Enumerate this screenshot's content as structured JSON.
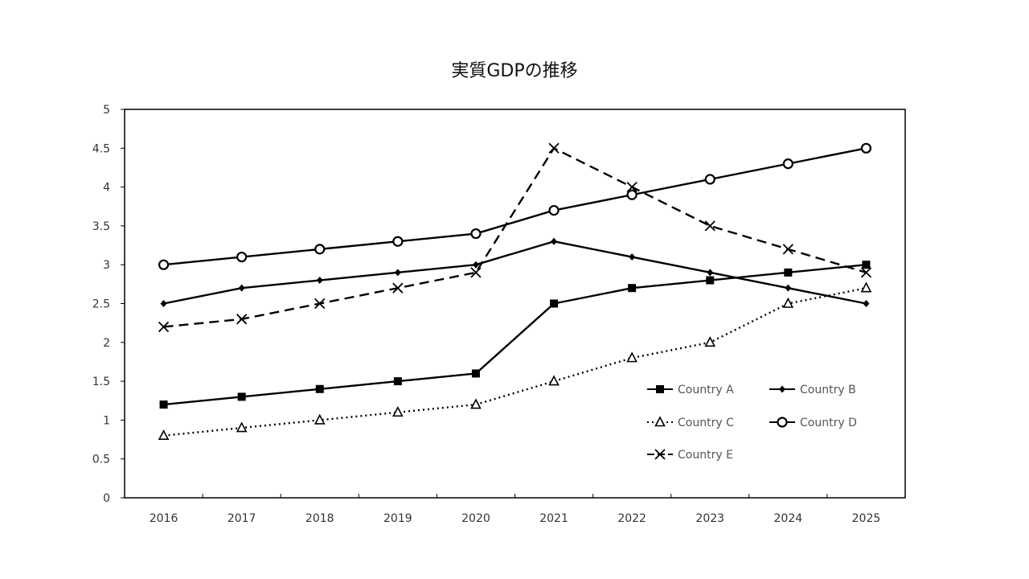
{
  "chart_data": {
    "type": "line",
    "title": "実質GDPの推移",
    "xlabel": "",
    "ylabel": "",
    "x": [
      "2016",
      "2017",
      "2018",
      "2019",
      "2020",
      "2021",
      "2022",
      "2023",
      "2024",
      "2025"
    ],
    "ylim": [
      0,
      5
    ],
    "yticks": [
      "0",
      "0.5",
      "1",
      "1.5",
      "2",
      "2.5",
      "3",
      "3.5",
      "4",
      "4.5",
      "5"
    ],
    "grid": false,
    "legend_position": "bottom-right inside",
    "series": [
      {
        "name": "Country A",
        "marker": "square",
        "line": "solid",
        "values": [
          1.2,
          1.3,
          1.4,
          1.5,
          1.6,
          2.5,
          2.7,
          2.8,
          2.9,
          3.0
        ]
      },
      {
        "name": "Country B",
        "marker": "diamond",
        "line": "solid",
        "values": [
          2.5,
          2.7,
          2.8,
          2.9,
          3.0,
          3.3,
          3.1,
          2.9,
          2.7,
          2.5
        ]
      },
      {
        "name": "Country C",
        "marker": "triangle",
        "line": "dotted",
        "values": [
          0.8,
          0.9,
          1.0,
          1.1,
          1.2,
          1.5,
          1.8,
          2.0,
          2.5,
          2.7
        ]
      },
      {
        "name": "Country D",
        "marker": "circle",
        "line": "solid",
        "values": [
          3.0,
          3.1,
          3.2,
          3.3,
          3.4,
          3.7,
          3.9,
          4.1,
          4.3,
          4.5
        ]
      },
      {
        "name": "Country E",
        "marker": "x",
        "line": "dashed",
        "values": [
          2.2,
          2.3,
          2.5,
          2.7,
          2.9,
          4.5,
          4.0,
          3.5,
          3.2,
          2.9
        ]
      }
    ]
  }
}
